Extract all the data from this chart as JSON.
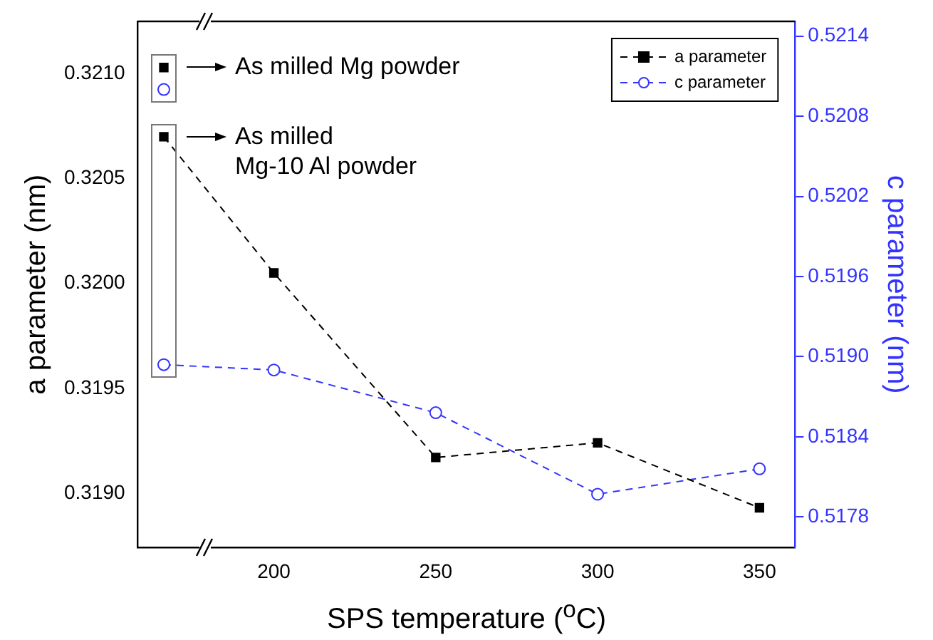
{
  "chart_data": {
    "type": "line",
    "xlabel": "SPS temperature ($^{o}$C)",
    "ylabel": "a parameter (nm)",
    "y2label": "c parameter (nm)",
    "xlim": [
      158,
      361
    ],
    "xticks": [
      200,
      250,
      300,
      350
    ],
    "ylim": [
      0.31874,
      0.32125
    ],
    "yticks": [
      {
        "value": 0.319,
        "label": "0.3190"
      },
      {
        "value": 0.3195,
        "label": "0.3195"
      },
      {
        "value": 0.32,
        "label": "0.3200"
      },
      {
        "value": 0.3205,
        "label": "0.3205"
      },
      {
        "value": 0.321,
        "label": "0.3210"
      }
    ],
    "y2lim": [
      0.51757,
      0.52151
    ],
    "y2ticks": [
      {
        "value": 0.5178,
        "label": "0.5178"
      },
      {
        "value": 0.5184,
        "label": "0.5184"
      },
      {
        "value": 0.519,
        "label": "0.5190"
      },
      {
        "value": 0.5196,
        "label": "0.5196"
      },
      {
        "value": 0.5202,
        "label": "0.5202"
      },
      {
        "value": 0.5208,
        "label": "0.5208"
      },
      {
        "value": 0.5214,
        "label": "0.5214"
      }
    ],
    "legend": "top right",
    "series": [
      {
        "name": "a parameter",
        "color": "#000000",
        "marker": "square",
        "line_style": "dashed",
        "x": [
          166,
          200,
          250,
          300,
          350
        ],
        "values": [
          0.3207,
          0.32005,
          0.31917,
          0.31924,
          0.31893
        ]
      },
      {
        "name": "c parameter",
        "axis": "y2",
        "color": "#3333ff",
        "marker": "circle",
        "line_style": "dashed",
        "x": [
          166,
          200,
          250,
          300,
          350
        ],
        "values": [
          0.51894,
          0.5189,
          0.51858,
          0.51797,
          0.51816
        ]
      },
      {
        "type": "scatter",
        "color": "#000000",
        "marker": "square",
        "x": [
          166
        ],
        "values": [
          0.32103
        ]
      },
      {
        "type": "scatter",
        "axis": "y2",
        "color": "#3333ff",
        "marker": "circle",
        "x": [
          166
        ],
        "values": [
          0.521
        ]
      }
    ],
    "annotations": [
      {
        "text": "As milled Mg powder",
        "x": 166,
        "y": 0.32103
      },
      {
        "text": "As milled\nMg-10 Al powder",
        "x": 166,
        "y": 0.3207
      }
    ]
  }
}
